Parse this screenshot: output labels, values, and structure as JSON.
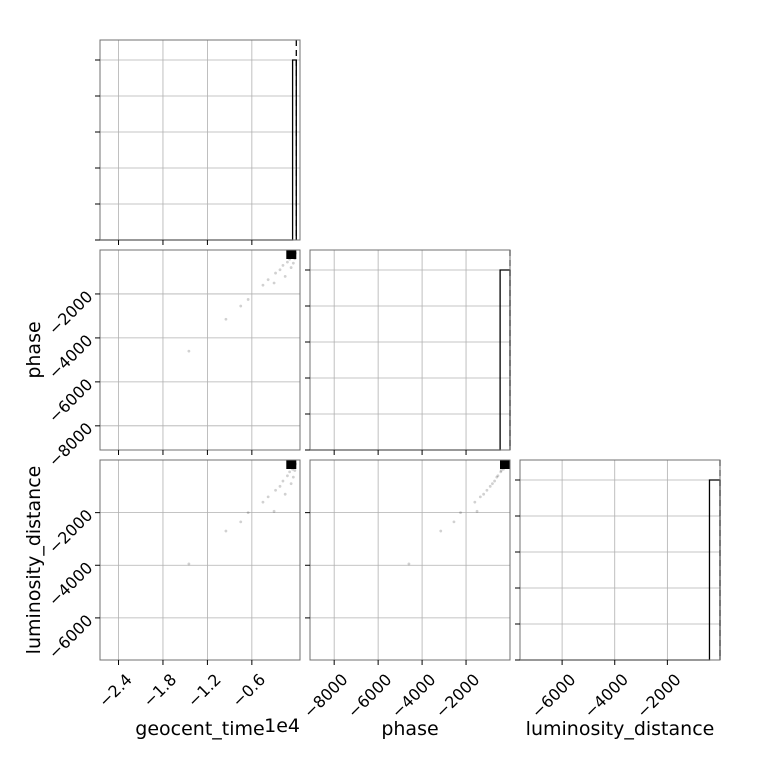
{
  "chart_data": {
    "type": "scatter",
    "kind": "corner-plot",
    "parameters": [
      "geocent_time",
      "phase",
      "luminosity_distance"
    ],
    "labels": {
      "geocent_time": "geocent_time",
      "phase": "phase",
      "luminosity_distance": "luminosity_distance"
    },
    "offset_text": {
      "geocent_time": "1e4"
    },
    "ranges": {
      "geocent_time": [
        -2.65,
        0.05
      ],
      "phase": [
        -9100,
        0
      ],
      "luminosity_distance": [
        -7600,
        0
      ]
    },
    "ticks": {
      "geocent_time": [
        {
          "v": -2.4,
          "label": "−2.4"
        },
        {
          "v": -1.8,
          "label": "−1.8"
        },
        {
          "v": -1.2,
          "label": "−1.2"
        },
        {
          "v": -0.6,
          "label": "−0.6"
        }
      ],
      "phase": [
        {
          "v": -8000,
          "label": "−8000"
        },
        {
          "v": -6000,
          "label": "−6000"
        },
        {
          "v": -4000,
          "label": "−4000"
        },
        {
          "v": -2000,
          "label": "−2000"
        }
      ],
      "luminosity_distance": [
        {
          "v": -6000,
          "label": "−6000"
        },
        {
          "v": -4000,
          "label": "−4000"
        },
        {
          "v": -2000,
          "label": "−2000"
        }
      ]
    },
    "histograms": {
      "geocent_time": {
        "bin_left": -0.05,
        "density": 0.9
      },
      "phase": {
        "bin_left": -450,
        "density": 0.9
      },
      "luminosity_distance": {
        "bin_left": -400,
        "density": 0.9
      }
    },
    "truth_lines": true,
    "samples": [
      {
        "geocent_time": -1.45,
        "phase": -4600,
        "luminosity_distance": -3950
      },
      {
        "geocent_time": -0.95,
        "phase": -3150,
        "luminosity_distance": -2700
      },
      {
        "geocent_time": -0.75,
        "phase": -2550,
        "luminosity_distance": -2350
      },
      {
        "geocent_time": -0.65,
        "phase": -2250,
        "luminosity_distance": -2000
      },
      {
        "geocent_time": -0.45,
        "phase": -1600,
        "luminosity_distance": -1600
      },
      {
        "geocent_time": -0.38,
        "phase": -1350,
        "luminosity_distance": -1400
      },
      {
        "geocent_time": -0.3,
        "phase": -1500,
        "luminosity_distance": -1950
      },
      {
        "geocent_time": -0.28,
        "phase": -1050,
        "luminosity_distance": -1150
      },
      {
        "geocent_time": -0.22,
        "phase": -900,
        "luminosity_distance": -1000
      },
      {
        "geocent_time": -0.18,
        "phase": -700,
        "luminosity_distance": -800
      },
      {
        "geocent_time": -0.15,
        "phase": -1200,
        "luminosity_distance": -1300
      },
      {
        "geocent_time": -0.12,
        "phase": -550,
        "luminosity_distance": -600
      },
      {
        "geocent_time": -0.09,
        "phase": -420,
        "luminosity_distance": -450
      },
      {
        "geocent_time": -0.07,
        "phase": -800,
        "luminosity_distance": -900
      },
      {
        "geocent_time": -0.05,
        "phase": -300,
        "luminosity_distance": -350
      },
      {
        "geocent_time": -0.04,
        "phase": -600,
        "luminosity_distance": -650
      },
      {
        "geocent_time": -0.03,
        "phase": -200,
        "luminosity_distance": -250
      },
      {
        "geocent_time": -0.02,
        "phase": -400,
        "luminosity_distance": -400
      },
      {
        "geocent_time": -0.01,
        "phase": -150,
        "luminosity_distance": -150
      }
    ],
    "grid": true,
    "legend": "none"
  }
}
